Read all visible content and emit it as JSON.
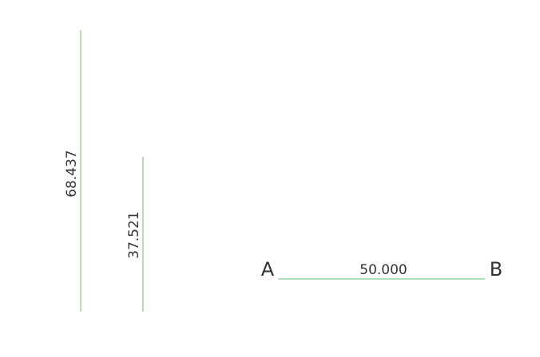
{
  "colors": {
    "line": "#6dbe6d",
    "text": "#333333",
    "background": "#ffffff"
  },
  "measurements": [
    {
      "label": "68.437",
      "orientation": "vertical"
    },
    {
      "label": "37.521",
      "orientation": "vertical"
    },
    {
      "label": "50.000",
      "orientation": "horizontal"
    }
  ],
  "endpoints": {
    "start": "A",
    "end": "B"
  }
}
